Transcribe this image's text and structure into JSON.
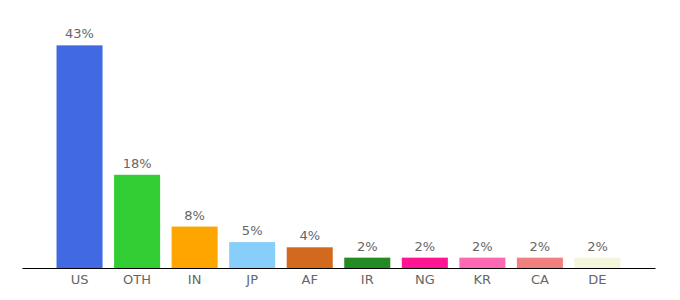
{
  "chart_data": {
    "type": "bar",
    "categories": [
      "US",
      "OTH",
      "IN",
      "JP",
      "AF",
      "IR",
      "NG",
      "KR",
      "CA",
      "DE"
    ],
    "values": [
      43,
      18,
      8,
      5,
      4,
      2,
      2,
      2,
      2,
      2
    ],
    "value_labels": [
      "43%",
      "18%",
      "8%",
      "5%",
      "4%",
      "2%",
      "2%",
      "2%",
      "2%",
      "2%"
    ],
    "colors": [
      "#4169e1",
      "#32cd32",
      "#ffa500",
      "#87cefa",
      "#d2691e",
      "#228b22",
      "#ff1493",
      "#ff69b4",
      "#f08080",
      "#f5f5dc"
    ],
    "ylim": [
      0,
      45
    ],
    "data_labels": true,
    "tick_labels": "x",
    "grid": false
  }
}
